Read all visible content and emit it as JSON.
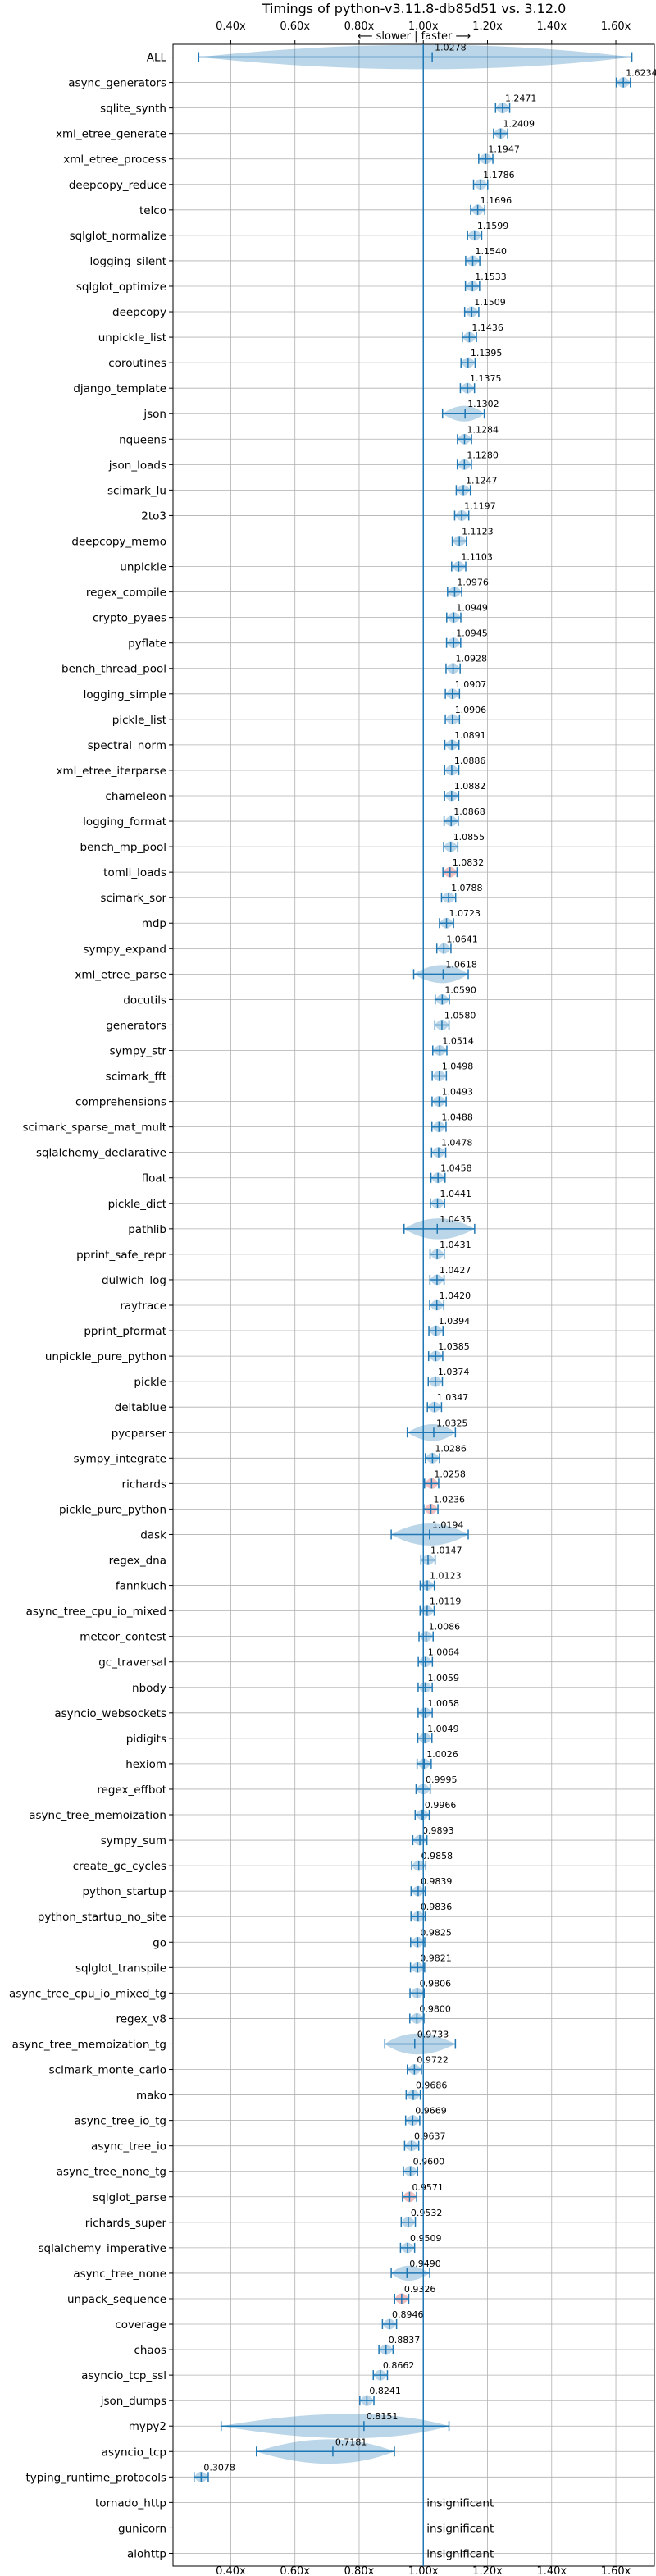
{
  "chart_data": {
    "type": "violin",
    "title": "Timings of python-v3.11.8-db85d51 vs. 3.12.0",
    "annotation": "⟵ slower | faster ⟶",
    "xlabel": "",
    "ylabel": "",
    "xlim": [
      0.22,
      1.72
    ],
    "xticks": [
      0.4,
      0.6,
      0.8,
      1.0,
      1.2,
      1.4,
      1.6
    ],
    "xtick_labels": [
      "0.40x",
      "0.60x",
      "0.80x",
      "1.00x",
      "1.20x",
      "1.40x",
      "1.60x"
    ],
    "reference_line": 1.0,
    "grid": true,
    "colors": {
      "violin": "#1f77b4",
      "highlight": "#d62728",
      "reference": "#1f77b4"
    },
    "categories": [
      "ALL",
      "async_generators",
      "sqlite_synth",
      "xml_etree_generate",
      "xml_etree_process",
      "deepcopy_reduce",
      "telco",
      "sqlglot_normalize",
      "logging_silent",
      "sqlglot_optimize",
      "deepcopy",
      "unpickle_list",
      "coroutines",
      "django_template",
      "json",
      "nqueens",
      "json_loads",
      "scimark_lu",
      "2to3",
      "deepcopy_memo",
      "unpickle",
      "regex_compile",
      "crypto_pyaes",
      "pyflate",
      "bench_thread_pool",
      "logging_simple",
      "pickle_list",
      "spectral_norm",
      "xml_etree_iterparse",
      "chameleon",
      "logging_format",
      "bench_mp_pool",
      "tomli_loads",
      "scimark_sor",
      "mdp",
      "sympy_expand",
      "xml_etree_parse",
      "docutils",
      "generators",
      "sympy_str",
      "scimark_fft",
      "comprehensions",
      "scimark_sparse_mat_mult",
      "sqlalchemy_declarative",
      "float",
      "pickle_dict",
      "pathlib",
      "pprint_safe_repr",
      "dulwich_log",
      "raytrace",
      "pprint_pformat",
      "unpickle_pure_python",
      "pickle",
      "deltablue",
      "pycparser",
      "sympy_integrate",
      "richards",
      "pickle_pure_python",
      "dask",
      "regex_dna",
      "fannkuch",
      "async_tree_cpu_io_mixed",
      "meteor_contest",
      "gc_traversal",
      "nbody",
      "asyncio_websockets",
      "pidigits",
      "hexiom",
      "regex_effbot",
      "async_tree_memoization",
      "sympy_sum",
      "create_gc_cycles",
      "python_startup",
      "python_startup_no_site",
      "go",
      "sqlglot_transpile",
      "async_tree_cpu_io_mixed_tg",
      "regex_v8",
      "async_tree_memoization_tg",
      "scimark_monte_carlo",
      "mako",
      "async_tree_io_tg",
      "async_tree_io",
      "async_tree_none_tg",
      "sqlglot_parse",
      "richards_super",
      "sqlalchemy_imperative",
      "async_tree_none",
      "unpack_sequence",
      "coverage",
      "chaos",
      "asyncio_tcp_ssl",
      "json_dumps",
      "mypy2",
      "asyncio_tcp",
      "typing_runtime_protocols",
      "tornado_http",
      "gunicorn",
      "aiohttp"
    ],
    "values": [
      1.0278,
      1.6234,
      1.2471,
      1.2409,
      1.1947,
      1.1786,
      1.1696,
      1.1599,
      1.154,
      1.1533,
      1.1509,
      1.1436,
      1.1395,
      1.1375,
      1.1302,
      1.1284,
      1.128,
      1.1247,
      1.1197,
      1.1123,
      1.1103,
      1.0976,
      1.0949,
      1.0945,
      1.0928,
      1.0907,
      1.0906,
      1.0891,
      1.0886,
      1.0882,
      1.0868,
      1.0855,
      1.0832,
      1.0788,
      1.0723,
      1.0641,
      1.0618,
      1.059,
      1.058,
      1.0514,
      1.0498,
      1.0493,
      1.0488,
      1.0478,
      1.0458,
      1.0441,
      1.0435,
      1.0431,
      1.0427,
      1.042,
      1.0394,
      1.0385,
      1.0374,
      1.0347,
      1.0325,
      1.0286,
      1.0258,
      1.0236,
      1.0194,
      1.0147,
      1.0123,
      1.0119,
      1.0086,
      1.0064,
      1.0059,
      1.0058,
      1.0049,
      1.0026,
      0.9995,
      0.9966,
      0.9893,
      0.9858,
      0.9839,
      0.9836,
      0.9825,
      0.9821,
      0.9806,
      0.98,
      0.9733,
      0.9722,
      0.9686,
      0.9669,
      0.9637,
      0.96,
      0.9571,
      0.9532,
      0.9509,
      0.949,
      0.9326,
      0.8946,
      0.8837,
      0.8662,
      0.8241,
      0.8151,
      0.7181,
      0.3078,
      null,
      null,
      null
    ],
    "value_labels": [
      "1.0278",
      "1.6234",
      "1.2471",
      "1.2409",
      "1.1947",
      "1.1786",
      "1.1696",
      "1.1599",
      "1.1540",
      "1.1533",
      "1.1509",
      "1.1436",
      "1.1395",
      "1.1375",
      "1.1302",
      "1.1284",
      "1.1280",
      "1.1247",
      "1.1197",
      "1.1123",
      "1.1103",
      "1.0976",
      "1.0949",
      "1.0945",
      "1.0928",
      "1.0907",
      "1.0906",
      "1.0891",
      "1.0886",
      "1.0882",
      "1.0868",
      "1.0855",
      "1.0832",
      "1.0788",
      "1.0723",
      "1.0641",
      "1.0618",
      "1.0590",
      "1.0580",
      "1.0514",
      "1.0498",
      "1.0493",
      "1.0488",
      "1.0478",
      "1.0458",
      "1.0441",
      "1.0435",
      "1.0431",
      "1.0427",
      "1.0420",
      "1.0394",
      "1.0385",
      "1.0374",
      "1.0347",
      "1.0325",
      "1.0286",
      "1.0258",
      "1.0236",
      "1.0194",
      "1.0147",
      "1.0123",
      "1.0119",
      "1.0086",
      "1.0064",
      "1.0059",
      "1.0058",
      "1.0049",
      "1.0026",
      "0.9995",
      "0.9966",
      "0.9893",
      "0.9858",
      "0.9839",
      "0.9836",
      "0.9825",
      "0.9821",
      "0.9806",
      "0.9800",
      "0.9733",
      "0.9722",
      "0.9686",
      "0.9669",
      "0.9637",
      "0.9600",
      "0.9571",
      "0.9532",
      "0.9509",
      "0.9490",
      "0.9326",
      "0.8946",
      "0.8837",
      "0.8662",
      "0.8241",
      "0.8151",
      "0.7181",
      "0.3078",
      "insignificant",
      "insignificant",
      "insignificant"
    ],
    "ranges": {
      "ALL": [
        0.3,
        1.65
      ],
      "mypy2": [
        0.37,
        1.08
      ],
      "asyncio_tcp": [
        0.48,
        0.91
      ],
      "xml_etree_parse": [
        0.97,
        1.14
      ],
      "pathlib": [
        0.94,
        1.16
      ],
      "dask": [
        0.9,
        1.14
      ],
      "pycparser": [
        0.95,
        1.1
      ],
      "async_tree_memoization_tg": [
        0.88,
        1.1
      ],
      "json": [
        1.06,
        1.19
      ],
      "async_tree_none": [
        0.9,
        1.02
      ]
    },
    "highlighted": [
      "tomli_loads",
      "richards",
      "pickle_pure_python",
      "sqlglot_parse",
      "unpack_sequence"
    ]
  }
}
